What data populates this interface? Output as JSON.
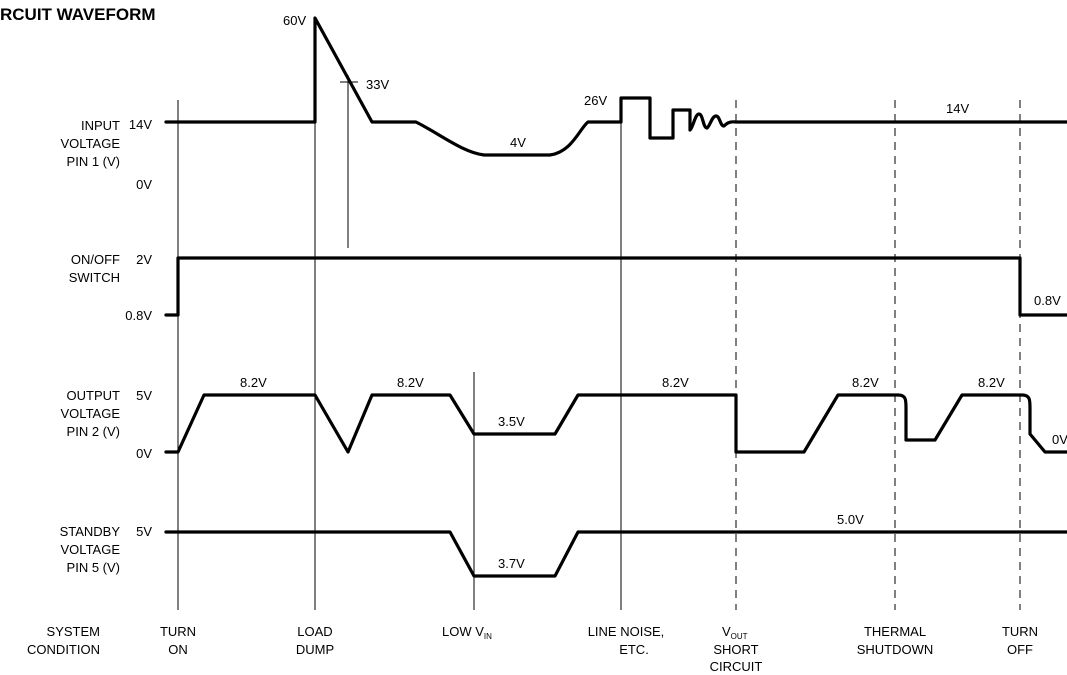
{
  "title": "RCUIT WAVEFORM",
  "rows": {
    "input": {
      "label_lines": [
        "INPUT",
        "VOLTAGE",
        "PIN 1  (V)"
      ],
      "ticks": [
        "14V",
        "0V"
      ]
    },
    "onoff": {
      "label_lines": [
        "ON/OFF",
        "SWITCH"
      ],
      "ticks": [
        "2V",
        "0.8V"
      ]
    },
    "output": {
      "label_lines": [
        "OUTPUT",
        "VOLTAGE",
        "PIN 2  (V)"
      ],
      "ticks": [
        "5V",
        "0V"
      ]
    },
    "standby": {
      "label_lines": [
        "STANDBY",
        "VOLTAGE",
        "PIN 5  (V)"
      ],
      "ticks": [
        "5V"
      ]
    },
    "system": {
      "label_lines": [
        "SYSTEM",
        "CONDITION"
      ]
    }
  },
  "annotations": {
    "input": [
      "60V",
      "33V",
      "4V",
      "26V",
      "14V"
    ],
    "onoff": [
      "0.8V"
    ],
    "output": [
      "8.2V",
      "8.2V",
      "3.5V",
      "8.2V",
      "8.2V",
      "8.2V",
      "0V"
    ],
    "standby": [
      "3.7V",
      "5.0V"
    ]
  },
  "conditions": [
    {
      "lines": [
        "TURN",
        "ON"
      ]
    },
    {
      "lines": [
        "LOAD",
        "DUMP"
      ]
    },
    {
      "lines": [
        "LOW V",
        ""
      ],
      "sub": "IN"
    },
    {
      "lines": [
        "LINE NOISE,",
        "ETC."
      ]
    },
    {
      "lines": [
        "V",
        "SHORT",
        "CIRCUIT"
      ],
      "sub": "OUT"
    },
    {
      "lines": [
        "THERMAL",
        "SHUTDOWN"
      ]
    },
    {
      "lines": [
        "TURN",
        "OFF"
      ]
    }
  ]
}
